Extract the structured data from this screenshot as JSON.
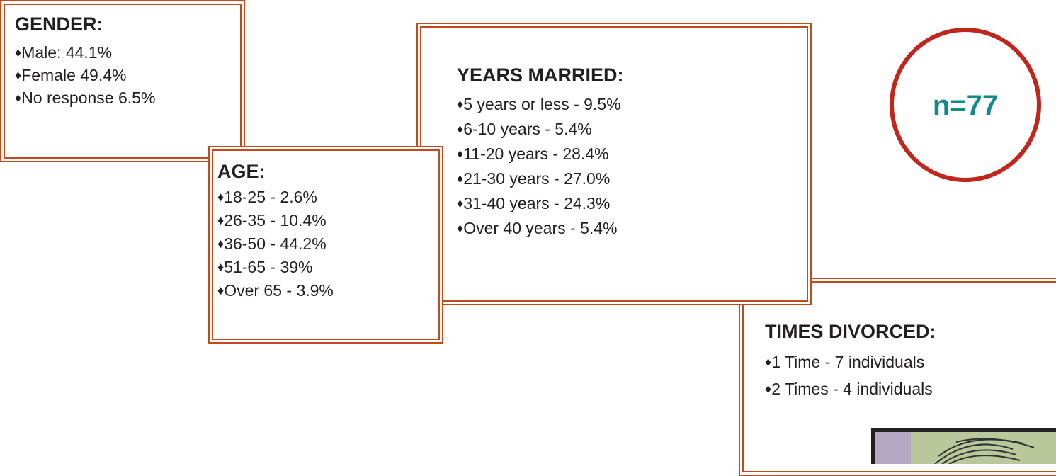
{
  "gender": {
    "title": "GENDER:",
    "items": [
      "Male:  44.1%",
      "Female 49.4%",
      "No response 6.5%"
    ]
  },
  "age": {
    "title": "AGE:",
    "items": [
      "18-25 - 2.6%",
      "26-35 - 10.4%",
      "36-50 - 44.2%",
      "51-65 - 39%",
      "Over 65 - 3.9%"
    ]
  },
  "years_married": {
    "title": "YEARS MARRIED:",
    "items": [
      "5 years or less - 9.5%",
      "6-10 years - 5.4%",
      "11-20 years - 28.4%",
      "21-30 years - 27.0%",
      "31-40 years - 24.3%",
      "Over 40 years - 5.4%"
    ]
  },
  "times_divorced": {
    "title": "TIMES DIVORCED:",
    "items": [
      "1 Time -  7 individuals",
      "2 Times -  4 individuals"
    ]
  },
  "sample_size": "n=77"
}
